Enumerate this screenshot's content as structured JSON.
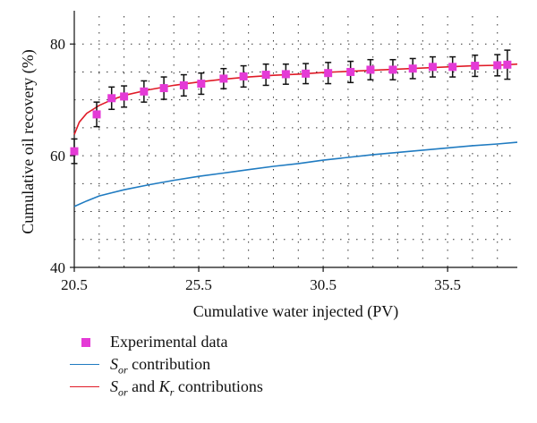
{
  "colors": {
    "experimental": "#e43ad6",
    "sor_line": "#1f7bc1",
    "sor_kr_line": "#e01b27",
    "error_bar": "#111111",
    "grid": "#333333"
  },
  "chart_data": {
    "type": "scatter",
    "title": "",
    "xlabel": "Cumulative water injected (PV)",
    "ylabel": "Cumulative oil recovery (%)",
    "xlim": [
      20.5,
      38.3
    ],
    "ylim": [
      40,
      85
    ],
    "x_ticks": [
      20.5,
      25.5,
      30.5,
      35.5
    ],
    "x_tick_labels": [
      "20.5",
      "25.5",
      "30.5",
      "35.5"
    ],
    "y_ticks": [
      40,
      60,
      80
    ],
    "y_tick_labels": [
      "40",
      "60",
      "80"
    ],
    "grid": "dotted",
    "legend": "bottom",
    "series": [
      {
        "name": "Experimental data",
        "kind": "scatter",
        "marker": "square",
        "color": "#e43ad6",
        "x": [
          20.5,
          21.4,
          22.0,
          22.5,
          23.3,
          24.1,
          24.9,
          25.6,
          26.5,
          27.3,
          28.2,
          29.0,
          29.8,
          30.7,
          31.6,
          32.4,
          33.3,
          34.1,
          34.9,
          35.7,
          36.6,
          37.5,
          37.9
        ],
        "y": [
          60.8,
          67.4,
          70.3,
          70.6,
          71.5,
          72.1,
          72.6,
          72.9,
          73.8,
          74.2,
          74.5,
          74.6,
          74.7,
          74.8,
          75.0,
          75.4,
          75.4,
          75.6,
          75.9,
          75.9,
          76.1,
          76.2,
          76.3
        ],
        "error": [
          2.2,
          2.2,
          2.0,
          1.9,
          1.9,
          2.0,
          1.9,
          1.9,
          1.8,
          1.9,
          1.9,
          1.8,
          1.8,
          1.9,
          1.9,
          1.8,
          1.8,
          1.8,
          1.8,
          1.8,
          1.9,
          1.9,
          2.6
        ]
      },
      {
        "name": "Sor contribution",
        "kind": "line",
        "color": "#1f7bc1",
        "x": [
          20.5,
          21.0,
          21.5,
          22.5,
          23.5,
          24.5,
          25.5,
          26.5,
          27.5,
          28.5,
          29.5,
          30.5,
          31.5,
          32.5,
          33.5,
          34.5,
          35.5,
          36.5,
          37.5,
          38.3
        ],
        "y": [
          50.9,
          51.9,
          52.8,
          53.9,
          54.8,
          55.6,
          56.3,
          56.9,
          57.5,
          58.1,
          58.6,
          59.2,
          59.7,
          60.2,
          60.6,
          61.0,
          61.4,
          61.8,
          62.1,
          62.4
        ]
      },
      {
        "name": "Sor and Kr contributions",
        "kind": "line",
        "color": "#e01b27",
        "x": [
          20.5,
          20.7,
          21.0,
          21.5,
          22.0,
          22.5,
          23.5,
          24.5,
          25.5,
          26.5,
          27.5,
          28.5,
          29.5,
          30.5,
          31.5,
          32.5,
          33.5,
          34.5,
          35.5,
          36.5,
          37.5,
          38.3
        ],
        "y": [
          63.8,
          66.0,
          67.6,
          69.0,
          70.0,
          70.8,
          71.8,
          72.6,
          73.2,
          73.7,
          74.1,
          74.4,
          74.6,
          74.9,
          75.1,
          75.3,
          75.5,
          75.7,
          75.9,
          76.1,
          76.2,
          76.4
        ]
      }
    ]
  },
  "legend": {
    "items": [
      {
        "label": "Experimental data"
      },
      {
        "label_main": "S",
        "label_sub": "or",
        "label_rest": " contribution"
      },
      {
        "label_main": "S",
        "label_sub": "or",
        "label_mid": " and ",
        "label_main2": "K",
        "label_sub2": "r",
        "label_rest": " contributions"
      }
    ]
  }
}
